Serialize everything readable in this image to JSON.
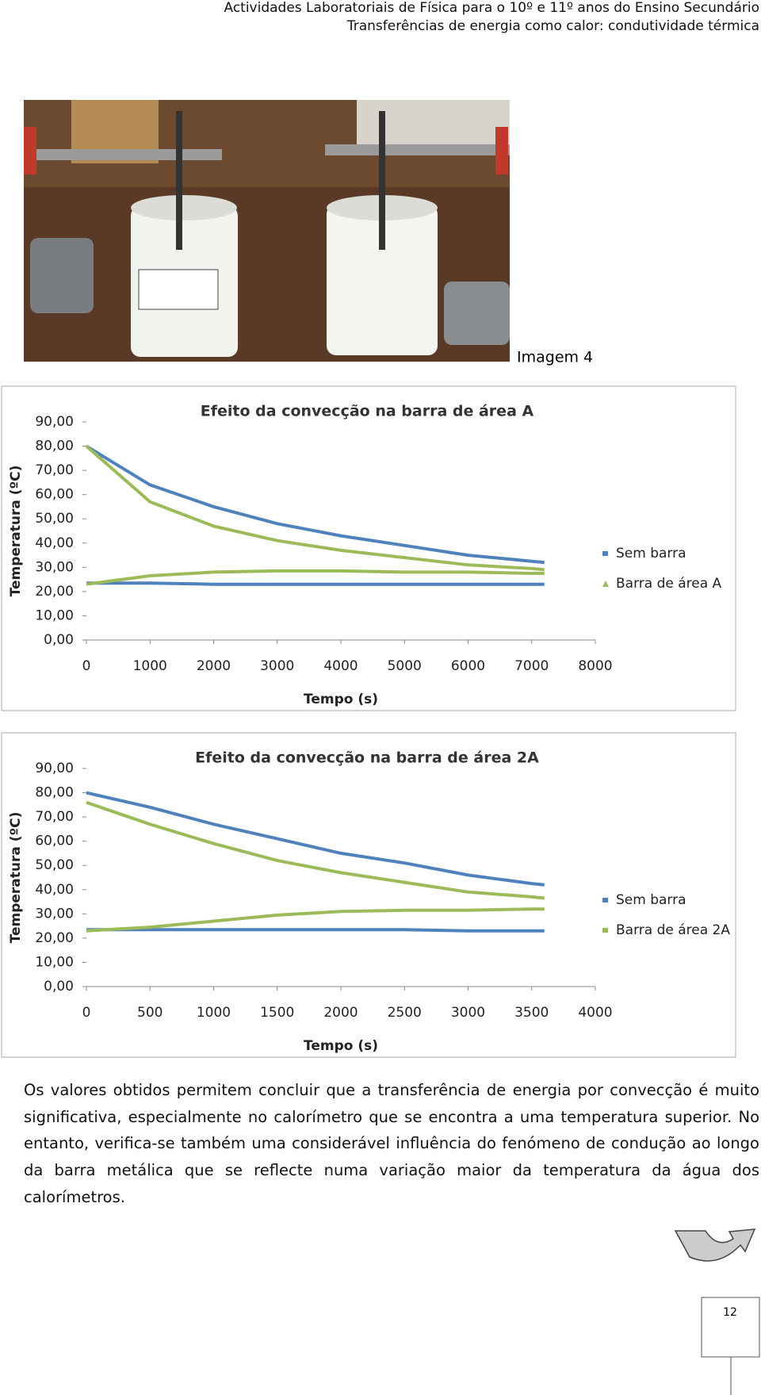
{
  "header": {
    "line1": "Actividades Laboratoriais de Física para o 10º e 11º anos do Ensino Secundário",
    "line2": "Transferências de energia como calor: condutividade térmica"
  },
  "image_caption": "Imagem 4",
  "chart_data": [
    {
      "type": "line",
      "title": "Efeito da convecção na barra de área A",
      "x_label": "Tempo (s)",
      "y_label": "Temperatura (ºC)",
      "x": [
        0,
        1000,
        2000,
        3000,
        4000,
        5000,
        6000,
        7000,
        7200
      ],
      "series": [
        {
          "name": "Sem barra",
          "color": "#4f81bd",
          "marker": "square",
          "hot": [
            80,
            64,
            55,
            48,
            43,
            39,
            35,
            32.5,
            32
          ],
          "cold": [
            23.5,
            23.5,
            23,
            23,
            23,
            23,
            23,
            23,
            23
          ]
        },
        {
          "name": "Barra de área A",
          "color": "#9bbb59",
          "marker": "triangle",
          "hot": [
            80,
            57,
            47,
            41,
            37,
            34,
            31,
            29.5,
            29
          ],
          "cold": [
            23,
            26.5,
            28,
            28.5,
            28.5,
            28,
            28,
            27.5,
            27.5
          ]
        }
      ],
      "xlim": [
        0,
        8000
      ],
      "xticks": [
        0,
        1000,
        2000,
        3000,
        4000,
        5000,
        6000,
        7000,
        8000
      ],
      "ylim": [
        0,
        90
      ],
      "yticks": [
        {
          "value": 0,
          "label": "0,00"
        },
        {
          "value": 10,
          "label": "10,00"
        },
        {
          "value": 20,
          "label": "20,00"
        },
        {
          "value": 30,
          "label": "30,00"
        },
        {
          "value": 40,
          "label": "40,00"
        },
        {
          "value": 50,
          "label": "50,00"
        },
        {
          "value": 60,
          "label": "60,00"
        },
        {
          "value": 70,
          "label": "70,00"
        },
        {
          "value": 80,
          "label": "80,00"
        },
        {
          "value": 90,
          "label": "90,00"
        }
      ],
      "legend": "right"
    },
    {
      "type": "line",
      "title": "Efeito da convecção na barra de área 2A",
      "x_label": "Tempo (s)",
      "y_label": "Temperatura (ºC)",
      "x": [
        0,
        500,
        1000,
        1500,
        2000,
        2500,
        3000,
        3500,
        3600
      ],
      "series": [
        {
          "name": "Sem barra",
          "color": "#4f81bd",
          "marker": "square",
          "hot": [
            80,
            74,
            67,
            61,
            55,
            51,
            46,
            42.5,
            42
          ],
          "cold": [
            23.5,
            23.5,
            23.5,
            23.5,
            23.5,
            23.5,
            23,
            23,
            23
          ]
        },
        {
          "name": "Barra de área 2A",
          "color": "#9bbb59",
          "marker": "square",
          "hot": [
            76,
            67,
            59,
            52,
            47,
            43,
            39,
            37,
            36.5
          ],
          "cold": [
            23,
            24.5,
            27,
            29.5,
            31,
            31.5,
            31.5,
            32,
            32
          ]
        }
      ],
      "xlim": [
        0,
        4000
      ],
      "xticks": [
        0,
        500,
        1000,
        1500,
        2000,
        2500,
        3000,
        3500,
        4000
      ],
      "ylim": [
        0,
        90
      ],
      "yticks": [
        {
          "value": 0,
          "label": "0,00"
        },
        {
          "value": 10,
          "label": "10,00"
        },
        {
          "value": 20,
          "label": "20,00"
        },
        {
          "value": 30,
          "label": "30,00"
        },
        {
          "value": 40,
          "label": "40,00"
        },
        {
          "value": 50,
          "label": "50,00"
        },
        {
          "value": 60,
          "label": "60,00"
        },
        {
          "value": 70,
          "label": "70,00"
        },
        {
          "value": 80,
          "label": "80,00"
        },
        {
          "value": 90,
          "label": "90,00"
        }
      ],
      "legend": "right"
    }
  ],
  "paragraph": "Os valores obtidos permitem concluir que a transferência de energia por convecção é muito significativa, especialmente no calorímetro que se encontra a uma temperatura superior. No entanto, verifica-se também uma considerável influência do fenómeno de condução ao longo da barra metálica que se reflecte numa variação maior da temperatura da água dos calorímetros.",
  "page_number": "12"
}
